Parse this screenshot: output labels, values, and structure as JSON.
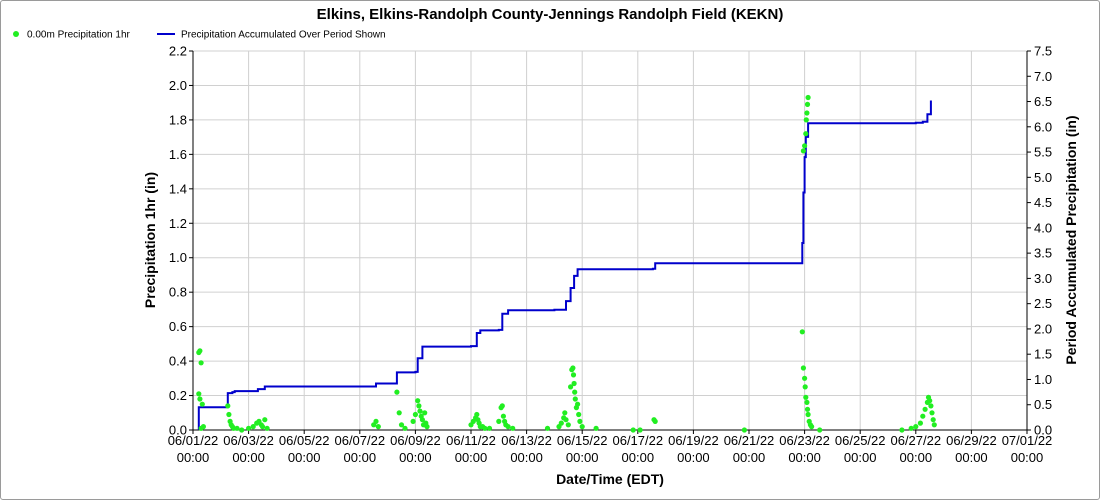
{
  "chart_data": {
    "type": "scatter+line",
    "title": "Elkins, Elkins-Randolph County-Jennings Randolph Field (KEKN)",
    "xlabel": "Date/Time (EDT)",
    "ylabel_left": "Precipitation 1hr (in)",
    "ylabel_right": "Period Accumulated Precipitation (in)",
    "xlim": [
      "2022-06-01T00:00",
      "2022-07-01T00:00"
    ],
    "ylim_left": [
      0,
      2.2
    ],
    "ylim_right": [
      0,
      7.5
    ],
    "x_ticks": [
      {
        "date": "06/01/22",
        "time": "00:00"
      },
      {
        "date": "06/03/22",
        "time": "00:00"
      },
      {
        "date": "06/05/22",
        "time": "00:00"
      },
      {
        "date": "06/07/22",
        "time": "00:00"
      },
      {
        "date": "06/09/22",
        "time": "00:00"
      },
      {
        "date": "06/11/22",
        "time": "00:00"
      },
      {
        "date": "06/13/22",
        "time": "00:00"
      },
      {
        "date": "06/15/22",
        "time": "00:00"
      },
      {
        "date": "06/17/22",
        "time": "00:00"
      },
      {
        "date": "06/19/22",
        "time": "00:00"
      },
      {
        "date": "06/21/22",
        "time": "00:00"
      },
      {
        "date": "06/23/22",
        "time": "00:00"
      },
      {
        "date": "06/25/22",
        "time": "00:00"
      },
      {
        "date": "06/27/22",
        "time": "00:00"
      },
      {
        "date": "06/29/22",
        "time": "00:00"
      },
      {
        "date": "07/01/22",
        "time": "00:00"
      }
    ],
    "y_ticks_left": [
      "0.0",
      "0.2",
      "0.4",
      "0.6",
      "0.8",
      "1.0",
      "1.2",
      "1.4",
      "1.6",
      "1.8",
      "2.0",
      "2.2"
    ],
    "y_ticks_right": [
      "0.0",
      "0.5",
      "1.0",
      "1.5",
      "2.0",
      "2.5",
      "3.0",
      "3.5",
      "4.0",
      "4.5",
      "5.0",
      "5.5",
      "6.0",
      "6.5",
      "7.0",
      "7.5"
    ],
    "grid": true,
    "legend_position": "top-left",
    "series": [
      {
        "name": "0.00m Precipitation 1hr",
        "kind": "scatter",
        "color": "#22ee22",
        "points": [
          [
            "2022-06-01T05:00",
            0.45
          ],
          [
            "2022-06-01T06:00",
            0.46
          ],
          [
            "2022-06-01T07:00",
            0.39
          ],
          [
            "2022-06-01T05:00",
            0.21
          ],
          [
            "2022-06-01T06:00",
            0.18
          ],
          [
            "2022-06-01T08:00",
            0.15
          ],
          [
            "2022-06-01T09:00",
            0.02
          ],
          [
            "2022-06-01T07:00",
            0.01
          ],
          [
            "2022-06-02T06:00",
            0.14
          ],
          [
            "2022-06-02T07:00",
            0.09
          ],
          [
            "2022-06-02T08:00",
            0.05
          ],
          [
            "2022-06-02T09:00",
            0.03
          ],
          [
            "2022-06-02T10:00",
            0.02
          ],
          [
            "2022-06-02T11:00",
            0.01
          ],
          [
            "2022-06-02T14:00",
            0.01
          ],
          [
            "2022-06-02T18:00",
            0.0
          ],
          [
            "2022-06-03T00:00",
            0.01
          ],
          [
            "2022-06-03T04:00",
            0.02
          ],
          [
            "2022-06-03T07:00",
            0.04
          ],
          [
            "2022-06-03T09:00",
            0.05
          ],
          [
            "2022-06-03T11:00",
            0.03
          ],
          [
            "2022-06-03T12:00",
            0.02
          ],
          [
            "2022-06-03T14:00",
            0.06
          ],
          [
            "2022-06-03T16:00",
            0.01
          ],
          [
            "2022-06-07T12:00",
            0.03
          ],
          [
            "2022-06-07T14:00",
            0.05
          ],
          [
            "2022-06-07T16:00",
            0.02
          ],
          [
            "2022-06-08T08:00",
            0.22
          ],
          [
            "2022-06-08T10:00",
            0.1
          ],
          [
            "2022-06-08T12:00",
            0.03
          ],
          [
            "2022-06-08T15:00",
            0.01
          ],
          [
            "2022-06-08T22:00",
            0.05
          ],
          [
            "2022-06-09T00:00",
            0.09
          ],
          [
            "2022-06-09T02:00",
            0.17
          ],
          [
            "2022-06-09T03:00",
            0.14
          ],
          [
            "2022-06-09T04:00",
            0.11
          ],
          [
            "2022-06-09T05:00",
            0.08
          ],
          [
            "2022-06-09T06:00",
            0.06
          ],
          [
            "2022-06-09T07:00",
            0.03
          ],
          [
            "2022-06-09T08:00",
            0.1
          ],
          [
            "2022-06-09T09:00",
            0.04
          ],
          [
            "2022-06-09T10:00",
            0.02
          ],
          [
            "2022-06-11T00:00",
            0.03
          ],
          [
            "2022-06-11T02:00",
            0.05
          ],
          [
            "2022-06-11T04:00",
            0.07
          ],
          [
            "2022-06-11T05:00",
            0.09
          ],
          [
            "2022-06-11T06:00",
            0.06
          ],
          [
            "2022-06-11T07:00",
            0.04
          ],
          [
            "2022-06-11T08:00",
            0.02
          ],
          [
            "2022-06-11T10:00",
            0.02
          ],
          [
            "2022-06-11T12:00",
            0.01
          ],
          [
            "2022-06-11T16:00",
            0.01
          ],
          [
            "2022-06-12T00:00",
            0.05
          ],
          [
            "2022-06-12T02:00",
            0.13
          ],
          [
            "2022-06-12T03:00",
            0.14
          ],
          [
            "2022-06-12T04:00",
            0.08
          ],
          [
            "2022-06-12T05:00",
            0.05
          ],
          [
            "2022-06-12T06:00",
            0.03
          ],
          [
            "2022-06-12T08:00",
            0.02
          ],
          [
            "2022-06-12T12:00",
            0.01
          ],
          [
            "2022-06-13T18:00",
            0.01
          ],
          [
            "2022-06-14T04:00",
            0.02
          ],
          [
            "2022-06-14T06:00",
            0.04
          ],
          [
            "2022-06-14T08:00",
            0.07
          ],
          [
            "2022-06-14T09:00",
            0.1
          ],
          [
            "2022-06-14T10:00",
            0.06
          ],
          [
            "2022-06-14T12:00",
            0.03
          ],
          [
            "2022-06-14T14:00",
            0.25
          ],
          [
            "2022-06-14T15:00",
            0.35
          ],
          [
            "2022-06-14T16:00",
            0.36
          ],
          [
            "2022-06-14T16:30",
            0.32
          ],
          [
            "2022-06-14T17:00",
            0.27
          ],
          [
            "2022-06-14T17:30",
            0.22
          ],
          [
            "2022-06-14T18:00",
            0.18
          ],
          [
            "2022-06-14T19:00",
            0.13
          ],
          [
            "2022-06-14T20:00",
            0.15
          ],
          [
            "2022-06-14T21:00",
            0.09
          ],
          [
            "2022-06-14T22:00",
            0.05
          ],
          [
            "2022-06-15T00:00",
            0.02
          ],
          [
            "2022-06-15T12:00",
            0.01
          ],
          [
            "2022-06-16T20:00",
            0.0
          ],
          [
            "2022-06-17T02:00",
            0.0
          ],
          [
            "2022-06-17T14:00",
            0.06
          ],
          [
            "2022-06-17T15:00",
            0.05
          ],
          [
            "2022-06-20T20:00",
            0.0
          ],
          [
            "2022-06-22T22:00",
            0.57
          ],
          [
            "2022-06-22T23:00",
            0.36
          ],
          [
            "2022-06-23T00:00",
            0.3
          ],
          [
            "2022-06-23T00:30",
            0.25
          ],
          [
            "2022-06-23T01:00",
            0.19
          ],
          [
            "2022-06-23T02:00",
            0.16
          ],
          [
            "2022-06-23T02:30",
            0.12
          ],
          [
            "2022-06-23T03:00",
            0.09
          ],
          [
            "2022-06-23T04:00",
            0.05
          ],
          [
            "2022-06-23T05:00",
            0.03
          ],
          [
            "2022-06-23T06:00",
            0.02
          ],
          [
            "2022-06-22T23:00",
            1.62
          ],
          [
            "2022-06-23T00:00",
            1.65
          ],
          [
            "2022-06-23T01:00",
            1.72
          ],
          [
            "2022-06-23T01:30",
            1.8
          ],
          [
            "2022-06-23T02:00",
            1.84
          ],
          [
            "2022-06-23T02:30",
            1.89
          ],
          [
            "2022-06-23T03:00",
            1.93
          ],
          [
            "2022-06-23T13:00",
            0.0
          ],
          [
            "2022-06-26T12:00",
            0.0
          ],
          [
            "2022-06-26T20:00",
            0.01
          ],
          [
            "2022-06-27T00:00",
            0.02
          ],
          [
            "2022-06-27T04:00",
            0.04
          ],
          [
            "2022-06-27T06:00",
            0.08
          ],
          [
            "2022-06-27T08:00",
            0.12
          ],
          [
            "2022-06-27T10:00",
            0.16
          ],
          [
            "2022-06-27T11:00",
            0.19
          ],
          [
            "2022-06-27T12:00",
            0.17
          ],
          [
            "2022-06-27T13:00",
            0.14
          ],
          [
            "2022-06-27T14:00",
            0.1
          ],
          [
            "2022-06-27T15:00",
            0.06
          ],
          [
            "2022-06-27T16:00",
            0.03
          ]
        ]
      },
      {
        "name": "Precipitation Accumulated Over Period Shown",
        "kind": "step-line",
        "color": "#0000cc",
        "points": [
          [
            "2022-06-01T05:00",
            0.0
          ],
          [
            "2022-06-01T05:00",
            0.45
          ],
          [
            "2022-06-02T05:00",
            0.46
          ],
          [
            "2022-06-02T06:00",
            0.73
          ],
          [
            "2022-06-02T10:00",
            0.75
          ],
          [
            "2022-06-02T12:00",
            0.77
          ],
          [
            "2022-06-03T00:00",
            0.77
          ],
          [
            "2022-06-03T08:00",
            0.81
          ],
          [
            "2022-06-03T14:00",
            0.86
          ],
          [
            "2022-06-07T12:00",
            0.86
          ],
          [
            "2022-06-07T14:00",
            0.92
          ],
          [
            "2022-06-08T06:00",
            0.92
          ],
          [
            "2022-06-08T08:00",
            1.14
          ],
          [
            "2022-06-09T00:00",
            1.15
          ],
          [
            "2022-06-09T02:00",
            1.42
          ],
          [
            "2022-06-09T06:00",
            1.65
          ],
          [
            "2022-06-11T00:00",
            1.66
          ],
          [
            "2022-06-11T05:00",
            1.92
          ],
          [
            "2022-06-11T08:00",
            1.97
          ],
          [
            "2022-06-12T00:00",
            1.98
          ],
          [
            "2022-06-12T03:00",
            2.3
          ],
          [
            "2022-06-12T08:00",
            2.37
          ],
          [
            "2022-06-14T00:00",
            2.38
          ],
          [
            "2022-06-14T10:00",
            2.55
          ],
          [
            "2022-06-14T14:00",
            2.81
          ],
          [
            "2022-06-14T17:00",
            3.05
          ],
          [
            "2022-06-14T20:00",
            3.18
          ],
          [
            "2022-06-17T13:00",
            3.19
          ],
          [
            "2022-06-17T15:00",
            3.3
          ],
          [
            "2022-06-22T21:00",
            3.3
          ],
          [
            "2022-06-22T22:00",
            3.7
          ],
          [
            "2022-06-22T23:00",
            4.7
          ],
          [
            "2022-06-23T00:00",
            5.4
          ],
          [
            "2022-06-23T01:00",
            5.8
          ],
          [
            "2022-06-23T03:00",
            6.07
          ],
          [
            "2022-06-27T00:00",
            6.08
          ],
          [
            "2022-06-27T06:00",
            6.1
          ],
          [
            "2022-06-27T10:00",
            6.25
          ],
          [
            "2022-06-27T13:00",
            6.52
          ]
        ]
      }
    ]
  }
}
